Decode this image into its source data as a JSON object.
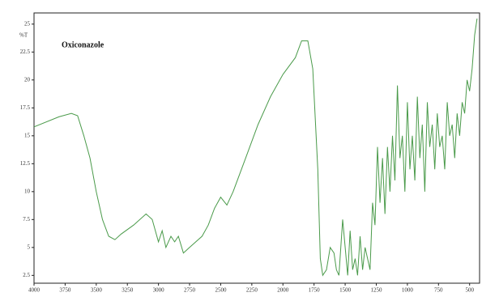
{
  "chart_data": {
    "type": "line",
    "title": "Oxiconazole",
    "y_label": "%T",
    "xlim": [
      4000,
      420
    ],
    "ylim": [
      1.8,
      26
    ],
    "xticks": [
      4000,
      3750,
      3500,
      3250,
      3000,
      2750,
      2500,
      2250,
      2000,
      1750,
      1500,
      1250,
      1000,
      750,
      500
    ],
    "yticks": [
      2.5,
      5,
      7.5,
      10,
      12.5,
      15,
      17.5,
      20,
      22.5,
      25
    ],
    "x": [
      4000,
      3800,
      3700,
      3650,
      3600,
      3550,
      3500,
      3450,
      3400,
      3350,
      3300,
      3200,
      3100,
      3050,
      3000,
      2970,
      2940,
      2900,
      2870,
      2840,
      2800,
      2750,
      2700,
      2650,
      2600,
      2550,
      2500,
      2450,
      2400,
      2300,
      2200,
      2100,
      2000,
      1900,
      1850,
      1800,
      1760,
      1720,
      1700,
      1680,
      1650,
      1620,
      1590,
      1570,
      1550,
      1520,
      1500,
      1480,
      1460,
      1440,
      1420,
      1400,
      1380,
      1360,
      1340,
      1300,
      1280,
      1260,
      1240,
      1220,
      1200,
      1180,
      1160,
      1140,
      1120,
      1100,
      1080,
      1060,
      1040,
      1020,
      1000,
      980,
      960,
      940,
      920,
      900,
      880,
      860,
      840,
      820,
      800,
      780,
      760,
      740,
      720,
      700,
      680,
      660,
      640,
      620,
      600,
      580,
      560,
      540,
      520,
      500,
      480,
      460,
      440
    ],
    "series": [
      {
        "name": "Oxiconazole",
        "color": "#4a9a4a",
        "values": [
          15.8,
          16.7,
          17,
          16.8,
          15,
          13,
          10,
          7.5,
          6,
          5.7,
          6.2,
          7,
          8,
          7.5,
          5.5,
          6.5,
          5,
          6,
          5.5,
          6,
          4.5,
          5,
          5.5,
          6,
          7,
          8.5,
          9.5,
          8.8,
          10,
          13,
          16,
          18.5,
          20.5,
          22,
          23.5,
          23.5,
          21,
          12,
          4,
          2.5,
          3,
          5,
          4.5,
          3,
          2.5,
          7.5,
          5,
          2.5,
          6.5,
          3,
          4,
          2.5,
          6,
          3,
          5,
          3,
          9,
          7,
          14,
          9,
          13,
          8,
          14,
          10,
          15,
          11,
          19.5,
          13,
          15,
          10,
          18,
          12,
          15,
          11,
          18.5,
          13,
          16,
          10,
          18,
          14,
          16,
          12,
          17,
          14,
          15,
          12,
          18,
          15,
          16,
          13,
          17,
          15,
          18,
          17,
          20,
          19,
          21,
          24,
          25.5
        ]
      }
    ]
  }
}
